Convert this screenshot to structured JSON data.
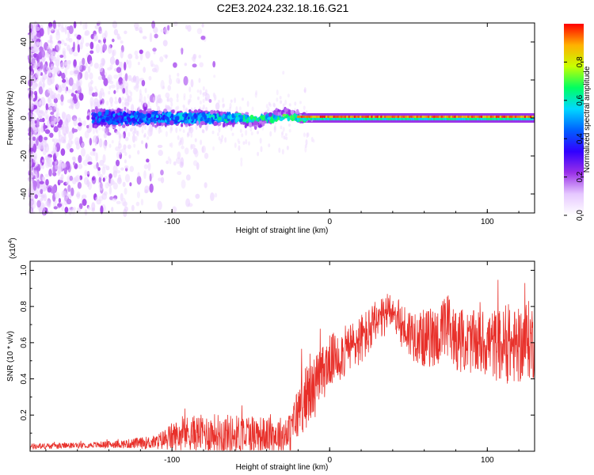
{
  "figure_title": "C2E3.2024.232.18.16.G21",
  "colors": {
    "line": "#e8302a",
    "background": "#ffffff",
    "axis": "#000000"
  },
  "chart_data": [
    {
      "type": "heatmap",
      "title": "C2E3.2024.232.18.16.G21",
      "xlabel": "Height of straight line (km)",
      "ylabel": "Frequency (Hz)",
      "xlim": [
        -190,
        130
      ],
      "ylim": [
        -50,
        50
      ],
      "xticks": [
        -100,
        0,
        100
      ],
      "xtick_labels": [
        "-100",
        "0",
        "100"
      ],
      "yticks": [
        -40,
        -20,
        0,
        20,
        40
      ],
      "ytick_labels": [
        "-40",
        "-20",
        "0",
        "20",
        "40"
      ],
      "colorbar": {
        "label": "Normalized spectral amplitude",
        "range": [
          0,
          1
        ],
        "ticks": [
          0,
          0.2,
          0.4,
          0.6,
          0.8
        ],
        "tick_labels": [
          "0.0",
          "0.2",
          "0.4",
          "0.6",
          "0.8"
        ],
        "colormap": [
          "#ffffff",
          "#e6c8ff",
          "#9a30e8",
          "#3000ff",
          "#0060ff",
          "#00d8ff",
          "#00ff60",
          "#c8ff00",
          "#ffb000",
          "#ff0000"
        ]
      },
      "description_of_field": "Scattered weak noise at large negative heights; a concentrated band near 0 Hz from about -150 km to -20 km, collapsing to a narrow strong line at 0 Hz above about -20 km"
    },
    {
      "type": "line",
      "xlabel": "Height of straight line (km)",
      "ylabel": "SNR (10 * v/v)",
      "multiplier_label": "(x10",
      "multiplier_exponent": "4",
      "multiplier_suffix": ")",
      "xlim": [
        -190,
        130
      ],
      "ylim": [
        0,
        1.05
      ],
      "xticks": [
        -100,
        0,
        100
      ],
      "xtick_labels": [
        "-100",
        "0",
        "100"
      ],
      "yticks": [
        0.2,
        0.4,
        0.6,
        0.8,
        1.0
      ],
      "ytick_labels": [
        "0.2",
        "0.4",
        "0.6",
        "0.8",
        "1.0"
      ],
      "series": [
        {
          "name": "SNR",
          "x": [
            -190,
            -170,
            -150,
            -130,
            -110,
            -100,
            -90,
            -80,
            -70,
            -60,
            -50,
            -40,
            -30,
            -25,
            -20,
            -15,
            -10,
            -5,
            0,
            10,
            20,
            30,
            35,
            38,
            40,
            45,
            50,
            60,
            70,
            75,
            80,
            90,
            100,
            110,
            120,
            125,
            130
          ],
          "mean": [
            0.025,
            0.03,
            0.035,
            0.04,
            0.05,
            0.08,
            0.1,
            0.1,
            0.1,
            0.09,
            0.1,
            0.09,
            0.09,
            0.1,
            0.22,
            0.3,
            0.35,
            0.42,
            0.5,
            0.55,
            0.62,
            0.7,
            0.74,
            0.8,
            0.78,
            0.7,
            0.66,
            0.62,
            0.64,
            0.68,
            0.62,
            0.6,
            0.6,
            0.58,
            0.58,
            0.62,
            0.6
          ],
          "spread": [
            0.02,
            0.02,
            0.02,
            0.03,
            0.05,
            0.1,
            0.12,
            0.13,
            0.14,
            0.14,
            0.14,
            0.12,
            0.13,
            0.14,
            0.2,
            0.22,
            0.22,
            0.2,
            0.18,
            0.18,
            0.18,
            0.16,
            0.14,
            0.12,
            0.12,
            0.16,
            0.18,
            0.2,
            0.22,
            0.26,
            0.22,
            0.22,
            0.24,
            0.26,
            0.26,
            0.28,
            0.26
          ]
        }
      ]
    }
  ]
}
